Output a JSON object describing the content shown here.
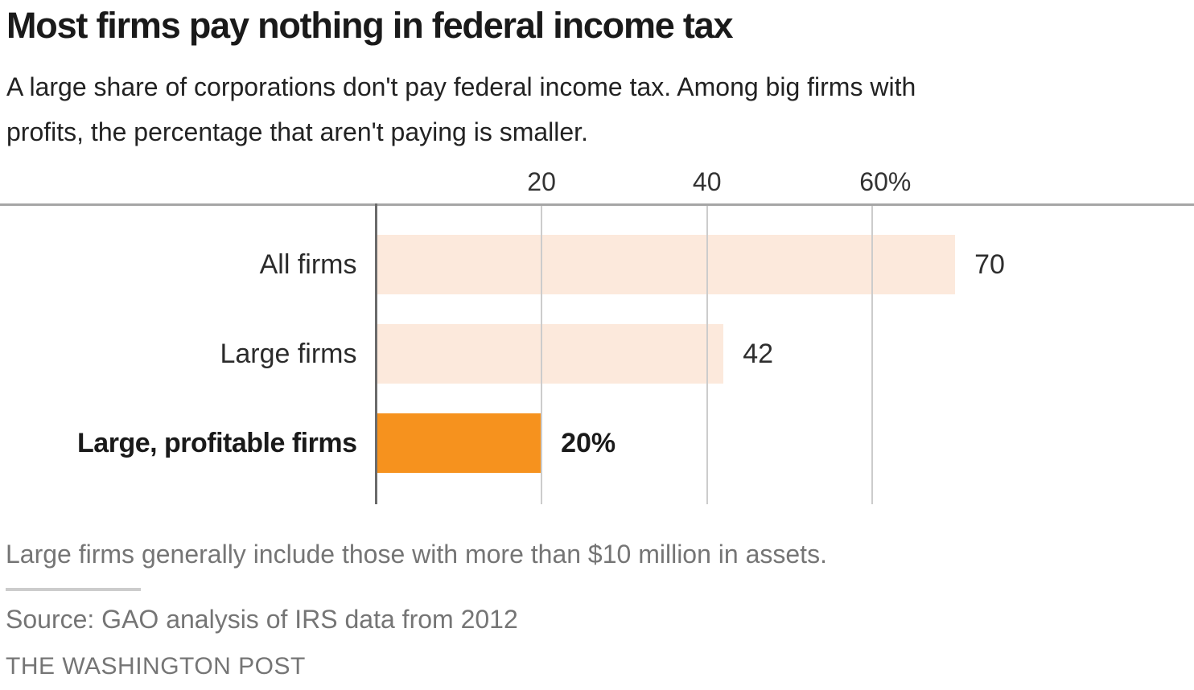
{
  "header": {
    "title": "Most firms pay nothing in federal income tax",
    "subtitle_lines": [
      "A large share of corporations don't pay federal income tax. Among big firms with",
      "profits, the percentage that aren't paying is smaller."
    ]
  },
  "chart_data": {
    "type": "bar",
    "orientation": "horizontal",
    "title": "Most firms pay nothing in federal income tax",
    "categories": [
      "All firms",
      "Large firms",
      "Large, profitable firms"
    ],
    "values": [
      70,
      42,
      20
    ],
    "value_labels": [
      "70",
      "42",
      "20%"
    ],
    "emphasized_category": "Large, profitable firms",
    "x_ticks": [
      {
        "value": 20,
        "label": "20"
      },
      {
        "value": 40,
        "label": "40"
      },
      {
        "value": 60,
        "label": "60%"
      }
    ],
    "xlim": [
      0,
      98
    ],
    "grid": true,
    "unit": "percent",
    "colors": {
      "bar_default": "#fce9dc",
      "bar_emphasis": "#f6921e",
      "axis_line": "#6b6b6b",
      "gridline": "#cccccc",
      "top_border": "#a6a6a6"
    }
  },
  "footer": {
    "note": "Large firms generally include those with more than $10 million in assets.",
    "source": "Source: GAO analysis of IRS data from 2012",
    "credit": "THE WASHINGTON POST"
  }
}
